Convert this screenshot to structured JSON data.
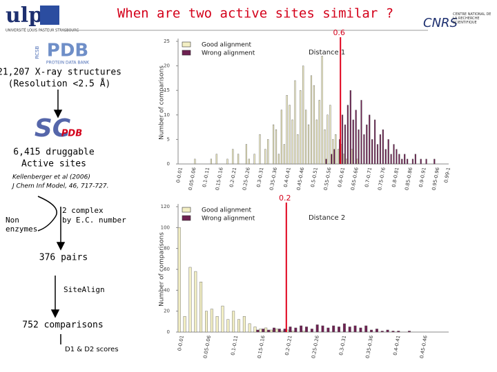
{
  "slide": {
    "title": "When are two active sites similar ?",
    "logo_left": "ulp",
    "logo_left_sub": "UNIVERSITÉ LOUIS PASTEUR STRASBOURG",
    "pdb_logo": "PDB",
    "pdb_sub": "PROTEIN DATA BANK",
    "pdb_rcsb": "RCSB",
    "logo_right": "CNRS",
    "logo_right_sub": "CENTRE NATIONAL DE LA RECHERCHE SCIENTIFIQUE",
    "scpdb_logo": "SC",
    "scpdb_logo_b": "PDB",
    "step1": "21,207 X-ray structures",
    "step1b": "(Resolution <2.5 Å)",
    "step2": "6,415 druggable",
    "step2b": "Active sites",
    "ref1": "Kellenberger et al (2006)",
    "ref2": "J Chem Inf Model, 46, 717-727.",
    "branch_left": "Non",
    "branch_left_b": "enzymes",
    "branch_right": "2 complex",
    "branch_right_b": "by E.C. number",
    "step3": "376 pairs",
    "step4": "SiteAlign",
    "step5": "752 comparisons",
    "step6": "D1 & D2 scores"
  },
  "chart_data": [
    {
      "type": "bar",
      "title": "Distance 1",
      "y_label": "Number of comparisons",
      "xlim": [
        0,
        1
      ],
      "threshold": 0.6,
      "categories": [
        "0-0.01",
        null,
        null,
        null,
        null,
        "0.05-0.06",
        null,
        null,
        null,
        null,
        "0.1-0.11",
        null,
        null,
        null,
        null,
        "0.15-0.16",
        null,
        null,
        null,
        null,
        "0.2-0.21",
        null,
        null,
        null,
        null,
        "0.25-0.26",
        null,
        null,
        null,
        null,
        "0.3-0.31",
        null,
        null,
        null,
        null,
        "0.35-0.36",
        null,
        null,
        null,
        null,
        "0.4-0.41",
        null,
        null,
        null,
        null,
        "0.45-0.46",
        null,
        null,
        null,
        null,
        "0.5-0.51",
        null,
        null,
        null,
        null,
        "0.55-0.56",
        null,
        null,
        null,
        null,
        "0.6-0.61",
        null,
        null,
        null,
        null,
        "0.65-0.66",
        null,
        null,
        null,
        null,
        "0.7-0.71",
        null,
        null,
        null,
        null,
        "0.75-0.76",
        null,
        null,
        null,
        null,
        "0.8-0.81",
        null,
        null,
        null,
        null,
        "0.85-0.86",
        null,
        null,
        null,
        null,
        "0.9-0.91",
        null,
        null,
        null,
        null,
        "0.95-0.96",
        null,
        null,
        null,
        "0.99-1"
      ],
      "series": [
        {
          "name": "Good alignment",
          "color": "#f3efc4",
          "values": [
            0,
            0,
            0,
            0,
            0,
            0,
            1,
            0,
            0,
            0,
            0,
            0,
            1,
            0,
            2,
            0,
            0,
            0,
            1,
            0,
            3,
            0,
            2,
            0,
            0,
            4,
            1,
            0,
            2,
            0,
            6,
            0,
            3,
            5,
            0,
            8,
            7,
            2,
            11,
            4,
            14,
            12,
            9,
            17,
            6,
            15,
            20,
            11,
            8,
            18,
            16,
            9,
            13,
            22,
            7,
            10,
            12,
            5,
            6,
            3,
            4,
            2,
            1,
            0,
            3,
            0,
            1,
            0,
            0,
            0,
            0,
            0,
            0,
            0,
            0,
            0,
            0,
            0,
            0,
            0,
            0,
            0,
            0,
            0,
            0,
            0,
            0,
            0,
            0,
            0,
            0,
            0,
            0,
            0,
            0,
            0,
            0,
            0,
            0,
            0
          ]
        },
        {
          "name": "Wrong alignment",
          "color": "#6e2152",
          "values": [
            0,
            0,
            0,
            0,
            0,
            0,
            0,
            0,
            0,
            0,
            0,
            0,
            0,
            0,
            0,
            0,
            0,
            0,
            0,
            0,
            0,
            0,
            0,
            0,
            0,
            0,
            0,
            0,
            0,
            0,
            0,
            0,
            0,
            0,
            0,
            0,
            0,
            0,
            0,
            0,
            0,
            0,
            0,
            0,
            0,
            0,
            0,
            0,
            0,
            0,
            0,
            0,
            0,
            0,
            1,
            0,
            2,
            3,
            0,
            5,
            10,
            8,
            12,
            15,
            9,
            11,
            7,
            13,
            6,
            8,
            10,
            5,
            9,
            4,
            6,
            7,
            3,
            5,
            2,
            4,
            3,
            2,
            1,
            2,
            1,
            0,
            1,
            2,
            0,
            1,
            0,
            1,
            0,
            0,
            1,
            0,
            0,
            0,
            0,
            0
          ]
        }
      ],
      "ylim": [
        0,
        25
      ],
      "yticks": [
        0,
        5,
        10,
        15,
        20,
        25
      ],
      "grid": false
    },
    {
      "type": "bar",
      "title": "Distance 2",
      "y_label": "Number of comparisons",
      "xlim": [
        0,
        0.5
      ],
      "threshold": 0.2,
      "categories": [
        "0-0.01",
        null,
        null,
        null,
        null,
        "0.05-0.06",
        null,
        null,
        null,
        null,
        "0.1-0.11",
        null,
        null,
        null,
        null,
        "0.15-0.16",
        null,
        null,
        null,
        null,
        "0.2-0.21",
        null,
        null,
        null,
        null,
        "0.25-0.26",
        null,
        null,
        null,
        null,
        "0.3-0.31",
        null,
        null,
        null,
        null,
        "0.35-0.36",
        null,
        null,
        null,
        null,
        "0.4-0.41",
        null,
        null,
        null,
        null,
        "0.45-0.46",
        null,
        null,
        null,
        null
      ],
      "series": [
        {
          "name": "Good alignment",
          "color": "#f3efc4",
          "values": [
            100,
            15,
            62,
            58,
            48,
            20,
            22,
            15,
            25,
            12,
            20,
            12,
            15,
            8,
            5,
            3,
            4,
            2,
            3,
            1,
            2,
            1,
            0,
            1,
            0,
            0,
            0,
            0,
            0,
            0,
            0,
            0,
            0,
            0,
            0,
            0,
            0,
            0,
            0,
            0,
            0,
            0,
            0,
            0,
            0,
            0,
            0,
            0,
            0,
            0
          ]
        },
        {
          "name": "Wrong alignment",
          "color": "#6e2152",
          "values": [
            0,
            0,
            0,
            0,
            0,
            0,
            0,
            0,
            0,
            0,
            0,
            0,
            0,
            0,
            2,
            3,
            2,
            4,
            3,
            3,
            5,
            4,
            6,
            5,
            3,
            7,
            6,
            4,
            6,
            5,
            8,
            5,
            6,
            4,
            6,
            2,
            3,
            1,
            2,
            1,
            1,
            0,
            1,
            0,
            0,
            0,
            0,
            0,
            0,
            0
          ]
        }
      ],
      "ylim": [
        0,
        120
      ],
      "yticks": [
        0,
        20,
        40,
        60,
        80,
        100,
        120
      ],
      "grid": false
    }
  ]
}
